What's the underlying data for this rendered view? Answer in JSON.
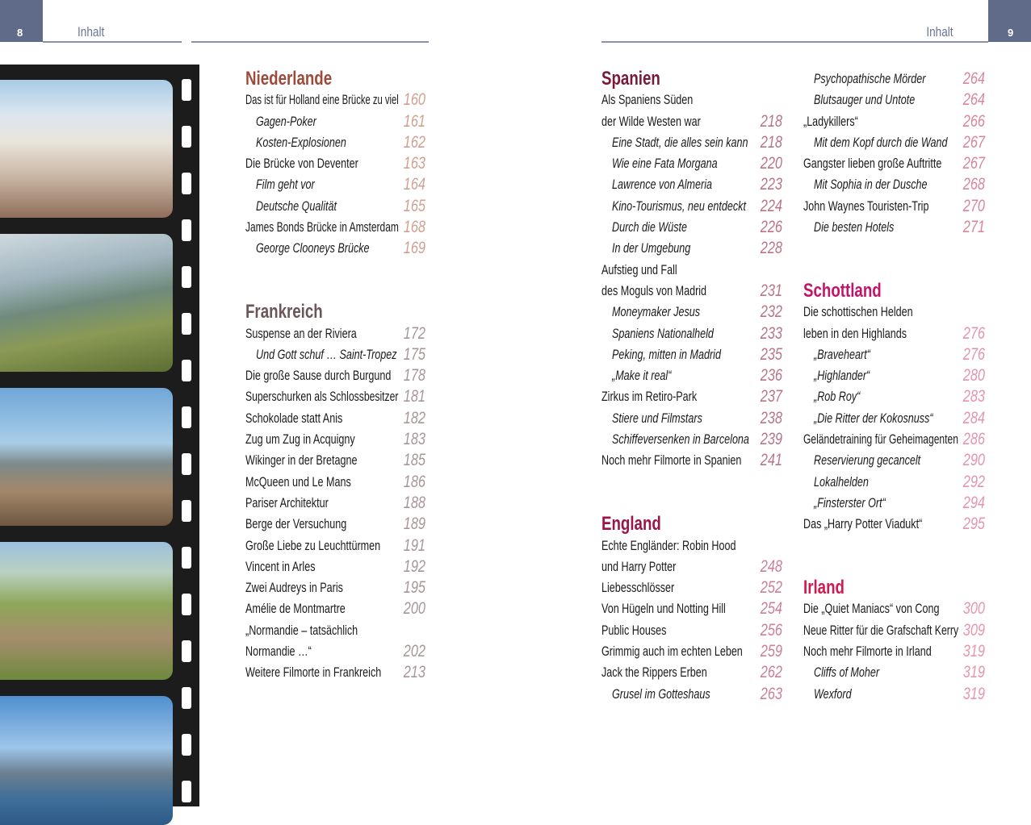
{
  "header": {
    "left": {
      "page_number": "8",
      "running_head": "Inhalt"
    },
    "right": {
      "page_number": "9",
      "running_head": "Inhalt"
    },
    "tab_color": "#5f6b89"
  },
  "film_strip": {
    "photos": [
      "dutch-townhall-photo",
      "coastal-cliffs-photo",
      "castle-ruins-photo",
      "alnwick-castle-photo",
      "eilean-donan-castle-photo"
    ]
  },
  "columns": [
    {
      "rows": [
        {
          "k": "h",
          "text": "Niederlande",
          "color": "#9e4a3a"
        },
        {
          "k": "e",
          "text": "Das ist für Holland eine Brücke zu viel",
          "page": "160",
          "pc": "#cfa08f"
        },
        {
          "k": "s",
          "text": "Gagen-Poker",
          "page": "161",
          "pc": "#cfa08f"
        },
        {
          "k": "s",
          "text": "Kosten-Explosionen",
          "page": "162",
          "pc": "#cfa08f"
        },
        {
          "k": "e",
          "text": "Die Brücke von Deventer",
          "page": "163",
          "pc": "#cfa08f"
        },
        {
          "k": "s",
          "text": "Film geht vor",
          "page": "164",
          "pc": "#cfa08f"
        },
        {
          "k": "s",
          "text": "Deutsche Qualität",
          "page": "165",
          "pc": "#cfa08f"
        },
        {
          "k": "e",
          "text": "James Bonds Brücke in Amsterdam",
          "page": "168",
          "pc": "#cfa08f"
        },
        {
          "k": "s",
          "text": "George Clooneys Brücke",
          "page": "169",
          "pc": "#cfa08f"
        },
        {
          "k": "b"
        },
        {
          "k": "b"
        },
        {
          "k": "h",
          "text": "Frankreich",
          "color": "#6b5558"
        },
        {
          "k": "e",
          "text": "Suspense an der Riviera",
          "page": "172",
          "pc": "#a89598"
        },
        {
          "k": "s",
          "text": "Und Gott schuf … Saint-Tropez",
          "page": "175",
          "pc": "#a89598"
        },
        {
          "k": "e",
          "text": "Die große Sause durch Burgund",
          "page": "178",
          "pc": "#a89598"
        },
        {
          "k": "e",
          "text": "Superschurken als Schlossbesitzer",
          "page": "181",
          "pc": "#a89598"
        },
        {
          "k": "e",
          "text": "Schokolade statt Anis",
          "page": "182",
          "pc": "#a89598"
        },
        {
          "k": "e",
          "text": "Zug um Zug in Acquigny",
          "page": "183",
          "pc": "#a89598"
        },
        {
          "k": "e",
          "text": "Wikinger in der Bretagne",
          "page": "185",
          "pc": "#a89598"
        },
        {
          "k": "e",
          "text": "McQueen und Le Mans",
          "page": "186",
          "pc": "#a89598"
        },
        {
          "k": "e",
          "text": "Pariser Architektur",
          "page": "188",
          "pc": "#a89598"
        },
        {
          "k": "e",
          "text": "Berge der Versuchung",
          "page": "189",
          "pc": "#a89598"
        },
        {
          "k": "e",
          "text": "Große Liebe zu Leuchttürmen",
          "page": "191",
          "pc": "#a89598"
        },
        {
          "k": "e",
          "text": "Vincent in Arles",
          "page": "192",
          "pc": "#a89598"
        },
        {
          "k": "e",
          "text": "Zwei Audreys in Paris",
          "page": "195",
          "pc": "#a89598"
        },
        {
          "k": "e",
          "text": "Amélie de Montmartre",
          "page": "200",
          "pc": "#a89598"
        },
        {
          "k": "e",
          "text": "„Normandie – tatsächlich"
        },
        {
          "k": "e",
          "text": "Normandie …“",
          "page": "202",
          "pc": "#a89598"
        },
        {
          "k": "e",
          "text": "Weitere Filmorte in Frankreich",
          "page": "213",
          "pc": "#a89598"
        }
      ]
    },
    {
      "rows": [
        {
          "k": "h",
          "text": "Spanien",
          "color": "#7a1a38"
        },
        {
          "k": "e",
          "text": "Als Spaniens Süden"
        },
        {
          "k": "e",
          "text": "der Wilde Westen war",
          "page": "218",
          "pc": "#b87585"
        },
        {
          "k": "s",
          "text": "Eine Stadt, die alles sein kann",
          "page": "218",
          "pc": "#b87585"
        },
        {
          "k": "s",
          "text": "Wie eine Fata Morgana",
          "page": "220",
          "pc": "#b87585"
        },
        {
          "k": "s",
          "text": "Lawrence von Almeria",
          "page": "223",
          "pc": "#b87585"
        },
        {
          "k": "s",
          "text": "Kino-Tourismus, neu entdeckt",
          "page": "224",
          "pc": "#b87585"
        },
        {
          "k": "s",
          "text": "Durch die Wüste",
          "page": "226",
          "pc": "#b87585"
        },
        {
          "k": "s",
          "text": "In der Umgebung",
          "page": "228",
          "pc": "#b87585"
        },
        {
          "k": "e",
          "text": "Aufstieg und Fall"
        },
        {
          "k": "e",
          "text": "des Moguls von Madrid",
          "page": "231",
          "pc": "#b87585"
        },
        {
          "k": "s",
          "text": "Moneymaker Jesus",
          "page": "232",
          "pc": "#b87585"
        },
        {
          "k": "s",
          "text": "Spaniens Nationalheld",
          "page": "233",
          "pc": "#b87585"
        },
        {
          "k": "s",
          "text": "Peking, mitten in Madrid",
          "page": "235",
          "pc": "#b87585"
        },
        {
          "k": "s",
          "text": "„Make it real“",
          "page": "236",
          "pc": "#b87585"
        },
        {
          "k": "e",
          "text": "Zirkus im Retiro-Park",
          "page": "237",
          "pc": "#b87585"
        },
        {
          "k": "s",
          "text": "Stiere und Filmstars",
          "page": "238",
          "pc": "#b87585"
        },
        {
          "k": "s",
          "text": "Schiffeversenken in Barcelona",
          "page": "239",
          "pc": "#b87585"
        },
        {
          "k": "e",
          "text": "Noch mehr Filmorte in Spanien",
          "page": "241",
          "pc": "#b87585"
        },
        {
          "k": "b"
        },
        {
          "k": "b"
        },
        {
          "k": "h",
          "text": "England",
          "color": "#9a1548"
        },
        {
          "k": "e",
          "text": "Echte Engländer: Robin Hood"
        },
        {
          "k": "e",
          "text": "und Harry Potter",
          "page": "248",
          "pc": "#cc7f95"
        },
        {
          "k": "e",
          "text": "Liebesschlösser",
          "page": "252",
          "pc": "#cc7f95"
        },
        {
          "k": "e",
          "text": "Von Hügeln und Notting Hill",
          "page": "254",
          "pc": "#cc7f95"
        },
        {
          "k": "e",
          "text": "Public Houses",
          "page": "256",
          "pc": "#cc7f95"
        },
        {
          "k": "e",
          "text": "Grimmig auch im echten Leben",
          "page": "259",
          "pc": "#cc7f95"
        },
        {
          "k": "e",
          "text": "Jack the Rippers Erben",
          "page": "262",
          "pc": "#cc7f95"
        },
        {
          "k": "s",
          "text": "Grusel im Gotteshaus",
          "page": "263",
          "pc": "#cc7f95"
        }
      ]
    },
    {
      "rows": [
        {
          "k": "s",
          "text": "Psychopathische Mörder",
          "page": "264",
          "pc": "#d8869a"
        },
        {
          "k": "s",
          "text": "Blutsauger und Untote",
          "page": "264",
          "pc": "#d8869a"
        },
        {
          "k": "e",
          "text": "„Ladykillers“",
          "page": "266",
          "pc": "#d8869a"
        },
        {
          "k": "s",
          "text": "Mit dem Kopf durch die Wand",
          "page": "267",
          "pc": "#d8869a"
        },
        {
          "k": "e",
          "text": "Gangster lieben große Auftritte",
          "page": "267",
          "pc": "#d8869a"
        },
        {
          "k": "s",
          "text": "Mit Sophia in der Dusche",
          "page": "268",
          "pc": "#d8869a"
        },
        {
          "k": "e",
          "text": "John Waynes Touristen-Trip",
          "page": "270",
          "pc": "#d8869a"
        },
        {
          "k": "s",
          "text": "Die besten Hotels",
          "page": "271",
          "pc": "#d8869a"
        },
        {
          "k": "b"
        },
        {
          "k": "b"
        },
        {
          "k": "h",
          "text": "Schottland",
          "color": "#c4146a"
        },
        {
          "k": "e",
          "text": "Die schottischen Helden"
        },
        {
          "k": "e",
          "text": "leben in den Highlands",
          "page": "276",
          "pc": "#e394b0"
        },
        {
          "k": "s",
          "text": "„Braveheart“",
          "page": "276",
          "pc": "#e394b0"
        },
        {
          "k": "s",
          "text": "„Highlander“",
          "page": "280",
          "pc": "#e394b0"
        },
        {
          "k": "s",
          "text": "„Rob Roy“",
          "page": "283",
          "pc": "#e394b0"
        },
        {
          "k": "s",
          "text": "„Die Ritter der Kokosnuss“",
          "page": "284",
          "pc": "#e394b0"
        },
        {
          "k": "e",
          "text": "Geländetraining für Geheimagenten",
          "page": "286",
          "pc": "#e394b0"
        },
        {
          "k": "s",
          "text": "Reservierung gecancelt",
          "page": "290",
          "pc": "#e394b0"
        },
        {
          "k": "s",
          "text": "Lokalhelden",
          "page": "292",
          "pc": "#e394b0"
        },
        {
          "k": "s",
          "text": "„Finsterster Ort“",
          "page": "294",
          "pc": "#e394b0"
        },
        {
          "k": "e",
          "text": "Das „Harry Potter Viadukt“",
          "page": "295",
          "pc": "#e394b0"
        },
        {
          "k": "b"
        },
        {
          "k": "b"
        },
        {
          "k": "h",
          "text": "Irland",
          "color": "#d01a50"
        },
        {
          "k": "e",
          "text": "Die „Quiet Maniacs“ von Cong",
          "page": "300",
          "pc": "#e896aa"
        },
        {
          "k": "e",
          "text": "Neue Ritter für die Grafschaft Kerry",
          "page": "309",
          "pc": "#e896aa"
        },
        {
          "k": "e",
          "text": "Noch mehr Filmorte in Irland",
          "page": "319",
          "pc": "#e896aa"
        },
        {
          "k": "s",
          "text": "Cliffs of Moher",
          "page": "319",
          "pc": "#e896aa"
        },
        {
          "k": "s",
          "text": "Wexford",
          "page": "319",
          "pc": "#e896aa"
        }
      ]
    }
  ]
}
